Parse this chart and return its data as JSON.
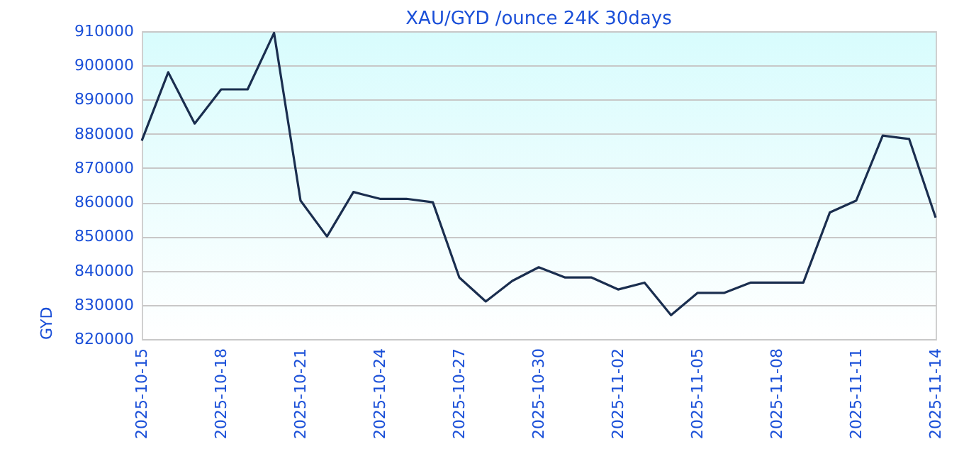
{
  "chart_data": {
    "type": "line",
    "title": "XAU/GYD /ounce 24K 30days",
    "ylabel": "GYD",
    "x": [
      "2025-10-15",
      "2025-10-16",
      "2025-10-17",
      "2025-10-18",
      "2025-10-19",
      "2025-10-20",
      "2025-10-21",
      "2025-10-22",
      "2025-10-23",
      "2025-10-24",
      "2025-10-25",
      "2025-10-26",
      "2025-10-27",
      "2025-10-28",
      "2025-10-29",
      "2025-10-30",
      "2025-10-31",
      "2025-11-01",
      "2025-11-02",
      "2025-11-03",
      "2025-11-04",
      "2025-11-05",
      "2025-11-06",
      "2025-11-07",
      "2025-11-08",
      "2025-11-09",
      "2025-11-10",
      "2025-11-11",
      "2025-11-12",
      "2025-11-13",
      "2025-11-14"
    ],
    "series": [
      {
        "color": "#1a2e4f",
        "values": [
          878000,
          898000,
          883000,
          893000,
          893000,
          909500,
          860500,
          850000,
          863000,
          861000,
          861000,
          860000,
          838000,
          831000,
          837000,
          841000,
          838000,
          838000,
          834500,
          836500,
          827000,
          833500,
          833500,
          836500,
          836500,
          836500,
          857000,
          860500,
          879500,
          878500,
          855500
        ]
      }
    ],
    "xlim": [
      "2025-10-15",
      "2025-11-14"
    ],
    "xticks": [
      "2025-10-15",
      "2025-10-18",
      "2025-10-21",
      "2025-10-24",
      "2025-10-27",
      "2025-10-30",
      "2025-11-02",
      "2025-11-05",
      "2025-11-08",
      "2025-11-11",
      "2025-11-14"
    ],
    "ylim": [
      820000,
      910000
    ],
    "yticks": [
      820000,
      830000,
      840000,
      850000,
      860000,
      870000,
      880000,
      890000,
      900000,
      910000
    ],
    "grid": "y",
    "marker": "none",
    "line_style": "solid"
  }
}
